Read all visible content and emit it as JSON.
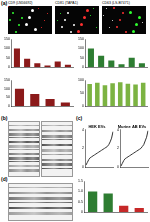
{
  "figure": {
    "panel_labels": [
      "(a)",
      "(b)",
      "(c)",
      "(d)"
    ],
    "images": [
      "CD9 (LN56692)",
      "CD81 (TAPA1)",
      "CD63 (LS-B7471)"
    ]
  },
  "chart_data": [
    {
      "type": "bar",
      "categories": [
        null,
        null,
        null,
        null,
        null,
        null
      ],
      "values": [
        100,
        45,
        20,
        8,
        30,
        12
      ],
      "color": "#8b1a1a",
      "ylim": [
        0,
        150
      ],
      "yticks": [
        0,
        50,
        100,
        150
      ],
      "grid": false,
      "tick_labels": "y"
    },
    {
      "type": "bar",
      "categories": [
        null,
        null,
        null,
        null,
        null,
        null
      ],
      "values": [
        100,
        60,
        35,
        15,
        50,
        20
      ],
      "color": "#2e7d32",
      "ylim": [
        0,
        150
      ],
      "yticks": [
        0,
        50,
        100,
        150
      ],
      "grid": false,
      "tick_labels": "y"
    },
    {
      "type": "bar",
      "categories": [
        null,
        null,
        null,
        null
      ],
      "values": [
        100,
        70,
        40,
        20
      ],
      "color": "#8b1a1a",
      "ylim": [
        0,
        150
      ],
      "yticks": [
        0,
        50,
        100,
        150
      ],
      "grid": false,
      "tick_labels": "y"
    },
    {
      "type": "bar",
      "categories": [
        null,
        null,
        null,
        null,
        null,
        null,
        null,
        null
      ],
      "values": [
        85,
        90,
        80,
        88,
        92,
        86,
        83,
        90
      ],
      "color": "#7cb342",
      "ylim": [
        0,
        100
      ],
      "yticks": [
        0,
        50,
        100
      ],
      "grid": false,
      "tick_labels": "y"
    },
    {
      "type": "line",
      "title": "HEK EVs",
      "categories": [
        null,
        null,
        null,
        null,
        null,
        null,
        null,
        null,
        null,
        null,
        null,
        null,
        null,
        null,
        null,
        null,
        null,
        null,
        null,
        null
      ],
      "values": [
        0.2,
        0.5,
        0.8,
        1,
        1.1,
        1.2,
        1.3,
        1.4,
        1.5,
        1.6,
        1.7,
        1.8,
        1.9,
        2,
        2.1,
        2.2,
        2.4,
        2.7,
        3.1,
        3.8
      ],
      "color": "#333333",
      "ylim": [
        0,
        4
      ],
      "yticks": [
        0,
        2,
        4
      ],
      "grid": false,
      "tick_labels": "y"
    },
    {
      "type": "line",
      "title": "Murine AB EVs",
      "categories": [
        null,
        null,
        null,
        null,
        null,
        null,
        null,
        null,
        null,
        null,
        null,
        null,
        null,
        null,
        null,
        null,
        null,
        null,
        null,
        null
      ],
      "values": [
        0.1,
        0.4,
        0.7,
        0.9,
        1,
        1.1,
        1.2,
        1.3,
        1.4,
        1.5,
        1.6,
        1.7,
        1.8,
        1.9,
        2,
        2.2,
        2.4,
        2.8,
        3.2,
        3.9
      ],
      "color": "#333333",
      "ylim": [
        0,
        4
      ],
      "yticks": [
        0,
        2,
        4
      ],
      "grid": false,
      "tick_labels": "y"
    },
    {
      "type": "bar",
      "categories": [
        null,
        null,
        null,
        null
      ],
      "values": [
        1,
        0.9,
        0.3,
        0.2
      ],
      "colors": [
        "#2e7d32",
        "#2e7d32",
        "#c62828",
        "#c62828"
      ],
      "ylim": [
        0,
        1.5
      ],
      "yticks": [
        0,
        0.5,
        1,
        1.5
      ],
      "grid": false,
      "tick_labels": "y"
    }
  ]
}
